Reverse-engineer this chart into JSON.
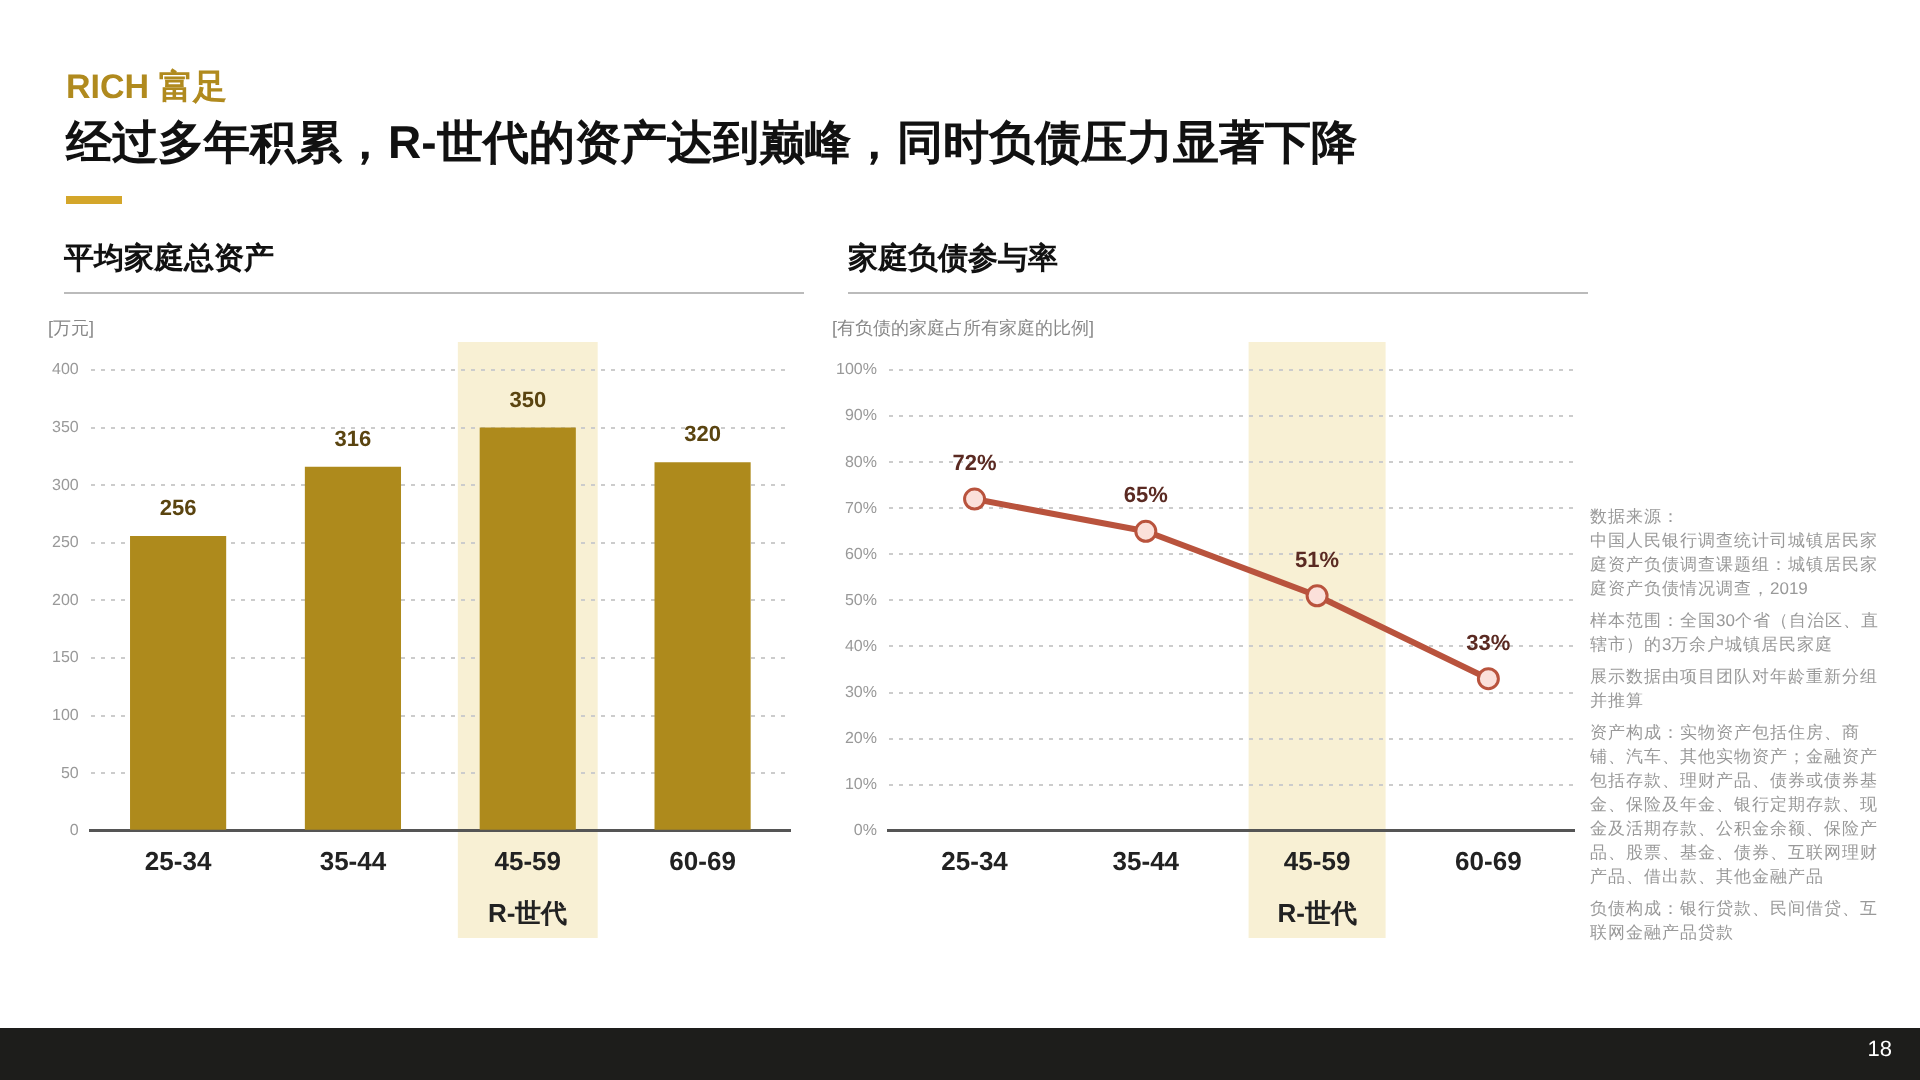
{
  "chart_data": [
    {
      "type": "other",
      "subtitle": "RICH 富足",
      "title": "经过多年积累，R-世代的资产达到巅峰，同时负债压力显著下降",
      "annotations": [
        "18"
      ]
    },
    {
      "type": "bar",
      "title": "平均家庭总资产",
      "ylabel": "[万元]",
      "categories": [
        "25-34",
        "35-44",
        "45-59",
        "60-69"
      ],
      "values": [
        256,
        316,
        350,
        320
      ],
      "color": "#ae8a1c",
      "ylim": [
        0,
        400
      ],
      "yticks": [
        0,
        50,
        100,
        150,
        200,
        250,
        300,
        350,
        400
      ],
      "grid": "y",
      "data_labels": true,
      "bands": [
        {
          "axis": "x",
          "from": "45-59",
          "to": "45-59",
          "label": "R-世代",
          "color": "#f8f0d4"
        }
      ]
    },
    {
      "type": "line",
      "title": "家庭负债参与率",
      "ylabel": "[有负债的家庭占所有家庭的比例]",
      "categories": [
        "25-34",
        "35-44",
        "45-59",
        "60-69"
      ],
      "series": [
        {
          "color": "#b9533d",
          "values": [
            72,
            65,
            51,
            33
          ],
          "value_labels": [
            "72%",
            "65%",
            "51%",
            "33%"
          ]
        }
      ],
      "ylim": [
        0,
        100
      ],
      "yticks": [
        {
          "value": 0,
          "label": "0%"
        },
        {
          "value": 10,
          "label": "10%"
        },
        {
          "value": 20,
          "label": "20%"
        },
        {
          "value": 30,
          "label": "30%"
        },
        {
          "value": 40,
          "label": "40%"
        },
        {
          "value": 50,
          "label": "50%"
        },
        {
          "value": 60,
          "label": "60%"
        },
        {
          "value": 70,
          "label": "70%"
        },
        {
          "value": 80,
          "label": "80%"
        },
        {
          "value": 90,
          "label": "90%"
        },
        {
          "value": 100,
          "label": "100%"
        }
      ],
      "grid": "y",
      "marker": "circle",
      "bands": [
        {
          "axis": "x",
          "from": "45-59",
          "to": "45-59",
          "label": "R-世代",
          "color": "#f8f0d4"
        }
      ]
    },
    {
      "type": "other",
      "annotations": [
        "数据来源：",
        "中国人民银行调查统计司城镇居民家庭资产负债调查课题组：城镇居民家庭资产负债情况调查，2019",
        "样本范围：全国30个省（自治区、直辖市）的3万余户城镇居民家庭",
        "展示数据由项目团队对年龄重新分组并推算",
        "资产构成：实物资产包括住房、商铺、汽车、其他实物资产；金融资产包括存款、理财产品、债券或债券基金、保险及年金、银行定期存款、现金及活期存款、公积金余额、保险产品、股票、基金、债券、互联网理财产品、借出款、其他金融产品",
        "负债构成：银行贷款、民间借贷、互联网金融产品贷款"
      ]
    }
  ]
}
